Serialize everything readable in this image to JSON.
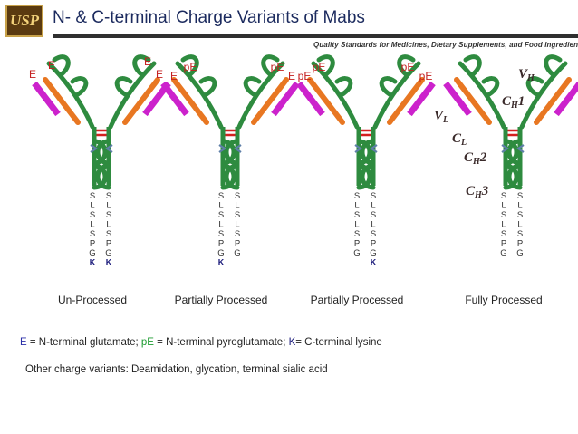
{
  "header": {
    "logo_text": "USP",
    "title": "N- & C-terminal Charge Variants of Mabs",
    "tagline": "Quality Standards for Medicines, Dietary Supplements, and Food Ingredients"
  },
  "antibodies": [
    {
      "caption": "Un-Processed",
      "n_labels": [
        "E",
        "E",
        "E",
        "E"
      ],
      "left_seq": [
        "S",
        "L",
        "S",
        "L",
        "S",
        "P",
        "G",
        "K"
      ],
      "right_seq": [
        "S",
        "L",
        "S",
        "L",
        "S",
        "P",
        "G",
        "K"
      ]
    },
    {
      "caption": "Partially Processed",
      "n_labels": [
        "E",
        "pE",
        "pE",
        "E"
      ],
      "left_seq": [
        "S",
        "L",
        "S",
        "L",
        "S",
        "P",
        "G",
        "K"
      ],
      "right_seq": [
        "S",
        "L",
        "S",
        "L",
        "S",
        "P",
        "G"
      ]
    },
    {
      "caption": "Partially Processed",
      "n_labels": [
        "pE",
        "pE",
        "pE",
        "pE"
      ],
      "left_seq": [
        "S",
        "L",
        "S",
        "L",
        "S",
        "P",
        "G"
      ],
      "right_seq": [
        "S",
        "L",
        "S",
        "L",
        "S",
        "P",
        "G",
        "K"
      ]
    },
    {
      "caption": "Fully Processed",
      "n_labels": [],
      "left_seq": [
        "S",
        "L",
        "S",
        "L",
        "S",
        "P",
        "G"
      ],
      "right_seq": [
        "S",
        "L",
        "S",
        "L",
        "S",
        "P",
        "G"
      ]
    }
  ],
  "domain_labels": {
    "vh": {
      "main": "V",
      "sub": "H"
    },
    "ch1": {
      "main": "C",
      "sub": "H",
      "suffix": "1"
    },
    "vl": {
      "main": "V",
      "sub": "L"
    },
    "cl": {
      "main": "C",
      "sub": "L"
    },
    "ch2": {
      "main": "C",
      "sub": "H",
      "suffix": "2"
    },
    "ch3": {
      "main": "C",
      "sub": "H",
      "suffix": "3"
    }
  },
  "legend": {
    "e_key": "E",
    "e_text": " = N-terminal glutamate; ",
    "pe_key": "pE",
    "pe_text": " = N-terminal pyroglutamate; ",
    "k_key": "K",
    "k_text": "=  C-terminal lysine"
  },
  "other_text": "Other charge variants: Deamidation, glycation, terminal sialic acid",
  "colors": {
    "heavy_chain": "#2e8b3f",
    "light_chain": "#e87722",
    "variable_domain": "#cc22cc",
    "disulfide": "#d42020",
    "arrow": "#5f7fa8",
    "n_label": "#c42020",
    "lysine": "#1a1a7a",
    "domain_label": "#3a2a2a"
  }
}
